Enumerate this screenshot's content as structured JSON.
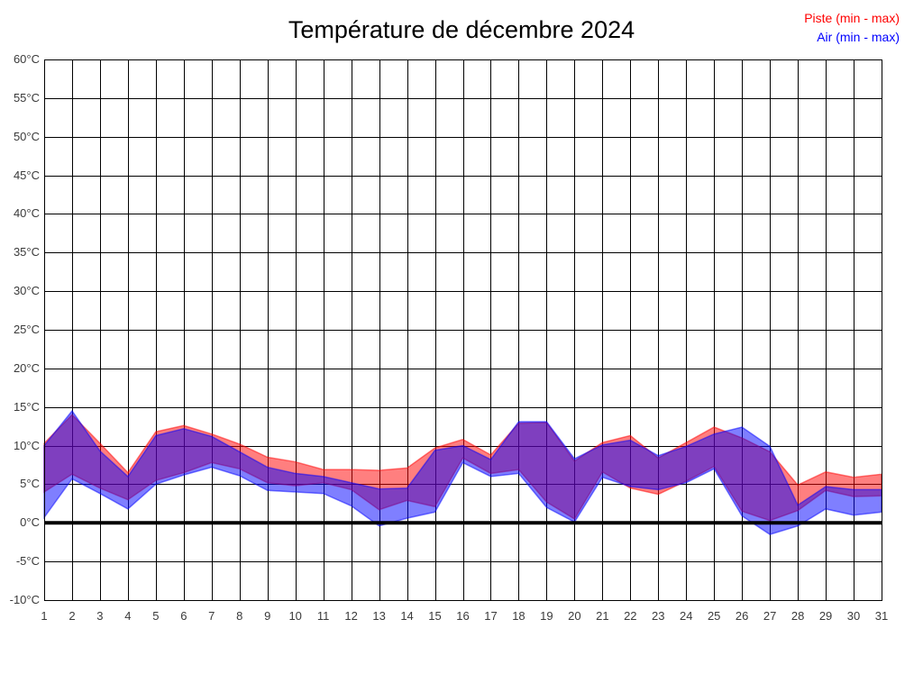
{
  "title": "Température de décembre 2024",
  "legend": {
    "piste": "Piste (min - max)",
    "piste_color": "#ff0000",
    "air": "Air (min - max)",
    "air_color": "#0000ff"
  },
  "chart_data": {
    "type": "area",
    "title": "Température de décembre 2024",
    "xlabel": "",
    "ylabel": "",
    "y_unit": "°C",
    "ylim": [
      -10,
      60
    ],
    "y_ticks": [
      60,
      55,
      50,
      45,
      40,
      35,
      30,
      25,
      20,
      15,
      10,
      5,
      0,
      -5,
      -10
    ],
    "x": [
      1,
      2,
      3,
      4,
      5,
      6,
      7,
      8,
      9,
      10,
      11,
      12,
      13,
      14,
      15,
      16,
      17,
      18,
      19,
      20,
      21,
      22,
      23,
      24,
      25,
      26,
      27,
      28,
      29,
      30,
      31
    ],
    "grid": true,
    "legend_position": "top-right",
    "zero_line_value": 0,
    "series": [
      {
        "name": "Piste (min - max)",
        "fill": "rgba(255,0,0,0.5)",
        "max": [
          10.3,
          14.0,
          10.3,
          6.5,
          11.8,
          12.6,
          11.5,
          10.2,
          8.5,
          7.9,
          6.9,
          6.9,
          6.8,
          7.1,
          9.7,
          10.8,
          8.8,
          12.9,
          13.0,
          8.0,
          10.4,
          11.3,
          8.4,
          10.4,
          12.4,
          11.0,
          9.2,
          4.9,
          6.6,
          5.9,
          6.3
        ],
        "min": [
          4.0,
          6.3,
          4.5,
          3.0,
          5.5,
          6.5,
          7.8,
          7.0,
          5.2,
          4.8,
          5.2,
          4.3,
          1.7,
          2.9,
          2.1,
          8.4,
          6.4,
          6.9,
          2.7,
          0.5,
          6.6,
          4.5,
          3.7,
          5.4,
          7.3,
          1.5,
          0.3,
          1.6,
          4.2,
          3.4,
          3.5
        ]
      },
      {
        "name": "Air (min - max)",
        "fill": "rgba(0,0,255,0.5)",
        "max": [
          10.0,
          14.5,
          9.3,
          6.0,
          11.3,
          12.2,
          11.2,
          9.2,
          7.2,
          6.4,
          6.0,
          5.2,
          4.4,
          4.5,
          9.4,
          10.0,
          8.2,
          13.1,
          13.1,
          8.3,
          10.1,
          10.7,
          8.7,
          9.9,
          11.5,
          12.4,
          9.9,
          2.3,
          4.7,
          4.3,
          4.3
        ],
        "min": [
          0.7,
          5.7,
          3.8,
          1.8,
          5.0,
          6.2,
          7.2,
          6.1,
          4.2,
          4.0,
          3.8,
          2.2,
          -0.4,
          0.6,
          1.4,
          7.8,
          6.0,
          6.4,
          2.0,
          0.1,
          5.9,
          4.7,
          4.3,
          5.2,
          7.0,
          0.9,
          -1.5,
          -0.4,
          1.8,
          1.0,
          1.4
        ]
      }
    ]
  }
}
